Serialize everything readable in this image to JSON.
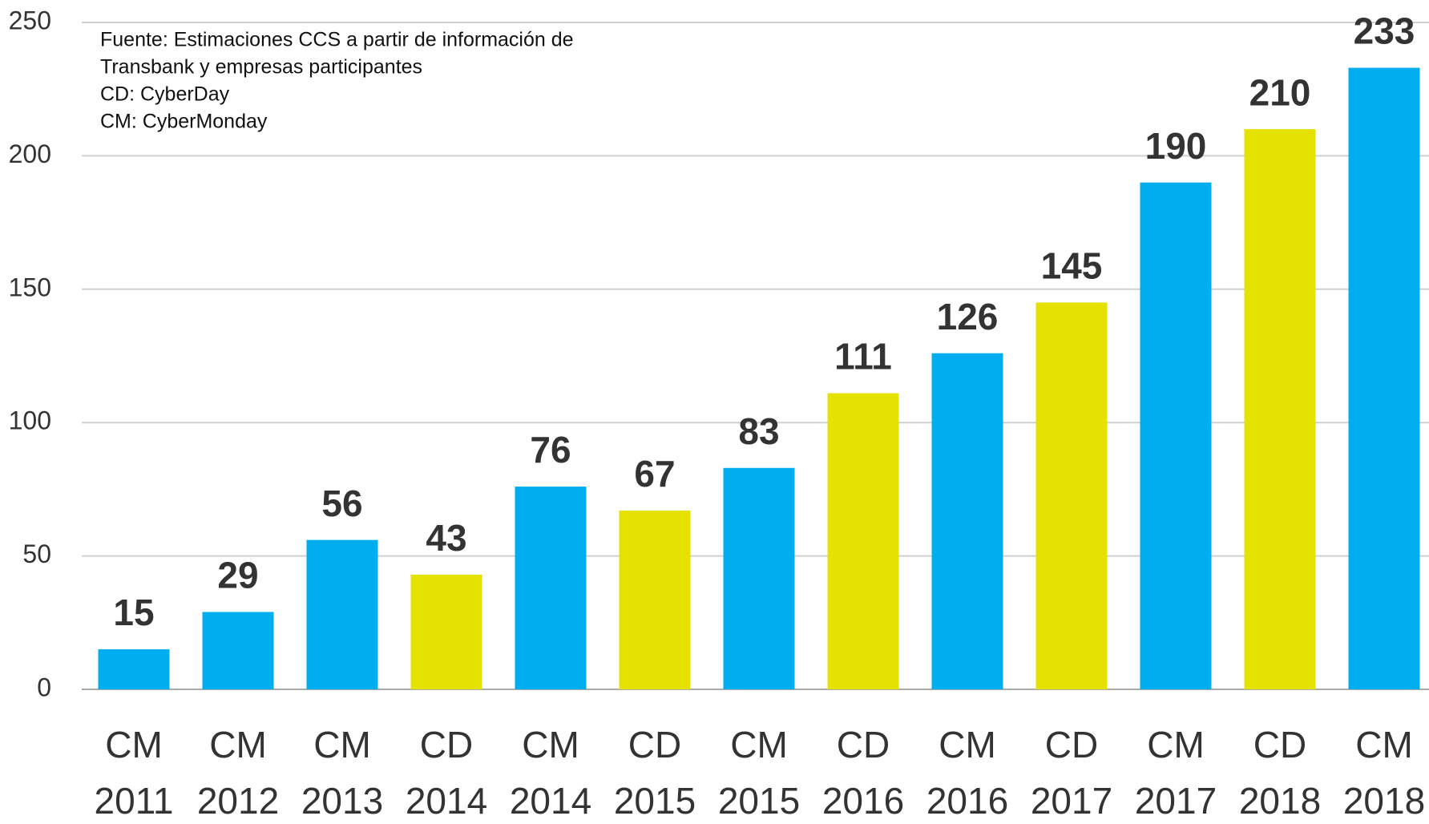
{
  "chart_data": {
    "type": "bar",
    "notes": [
      "Fuente: Estimaciones CCS a partir de información de",
      "Transbank y empresas participantes",
      "CD: CyberDay",
      "CM: CyberMonday"
    ],
    "categories": [
      [
        "CM",
        "2011"
      ],
      [
        "CM",
        "2012"
      ],
      [
        "CM",
        "2013"
      ],
      [
        "CD",
        "2014"
      ],
      [
        "CM",
        "2014"
      ],
      [
        "CD",
        "2015"
      ],
      [
        "CM",
        "2015"
      ],
      [
        "CD",
        "2016"
      ],
      [
        "CM",
        "2016"
      ],
      [
        "CD",
        "2017"
      ],
      [
        "CM",
        "2017"
      ],
      [
        "CD",
        "2018"
      ],
      [
        "CM",
        "2018"
      ]
    ],
    "values": [
      15,
      29,
      56,
      43,
      76,
      67,
      83,
      111,
      126,
      145,
      190,
      210,
      233
    ],
    "colors": [
      "#00aeef",
      "#00aeef",
      "#00aeef",
      "#e5e100",
      "#00aeef",
      "#e5e100",
      "#00aeef",
      "#e5e100",
      "#00aeef",
      "#e5e100",
      "#00aeef",
      "#e5e100",
      "#00aeef"
    ],
    "ylim": [
      0,
      250
    ],
    "yticks": [
      0,
      50,
      100,
      150,
      200,
      250
    ],
    "grid": true
  }
}
